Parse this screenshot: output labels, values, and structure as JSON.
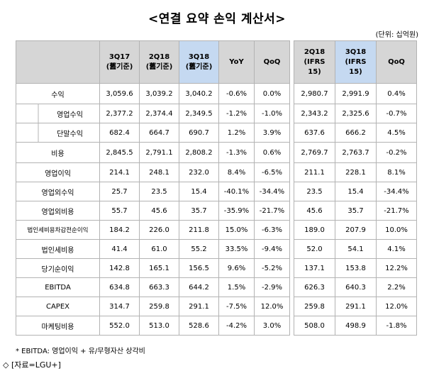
{
  "title": "<연결 요약 손익 계산서>",
  "unit": "(단위: 십억원)",
  "header": [
    "3Q17\n(舊기준)",
    "2Q18\n(舊기준)",
    "3Q18\n(舊기준)",
    "YoY",
    "QoQ",
    "2Q18\n(IFRS\n15)",
    "3Q18\n(IFRS\n15)",
    "QoQ"
  ],
  "rows": [
    {
      "label": "수익",
      "sub": false,
      "values": [
        "3,059.6",
        "3,039.2",
        "3,040.2",
        "-0.6%",
        "0.0%",
        "2,980.7",
        "2,991.9",
        "0.4%"
      ]
    },
    {
      "label": "영업수익",
      "sub": true,
      "values": [
        "2,377.2",
        "2,374.4",
        "2,349.5",
        "-1.2%",
        "-1.0%",
        "2,343.2",
        "2,325.6",
        "-0.7%"
      ]
    },
    {
      "label": "단말수익",
      "sub": true,
      "values": [
        "682.4",
        "664.7",
        "690.7",
        "1.2%",
        "3.9%",
        "637.6",
        "666.2",
        "4.5%"
      ]
    },
    {
      "label": "비용",
      "sub": false,
      "values": [
        "2,845.5",
        "2,791.1",
        "2,808.2",
        "-1.3%",
        "0.6%",
        "2,769.7",
        "2,763.7",
        "-0.2%"
      ]
    },
    {
      "label": "영업이익",
      "sub": false,
      "values": [
        "214.1",
        "248.1",
        "232.0",
        "8.4%",
        "-6.5%",
        "211.1",
        "228.1",
        "8.1%"
      ]
    },
    {
      "label": "영업외수익",
      "sub": false,
      "values": [
        "25.7",
        "23.5",
        "15.4",
        "-40.1%",
        "-34.4%",
        "23.5",
        "15.4",
        "-34.4%"
      ]
    },
    {
      "label": "영업외비용",
      "sub": false,
      "values": [
        "55.7",
        "45.6",
        "35.7",
        "-35.9%",
        "-21.7%",
        "45.6",
        "35.7",
        "-21.7%"
      ]
    },
    {
      "label": "법인세비용차감전순이익",
      "sub": false,
      "small": true,
      "values": [
        "184.2",
        "226.0",
        "211.8",
        "15.0%",
        "-6.3%",
        "189.0",
        "207.9",
        "10.0%"
      ]
    },
    {
      "label": "법인세비용",
      "sub": false,
      "values": [
        "41.4",
        "61.0",
        "55.2",
        "33.5%",
        "-9.4%",
        "52.0",
        "54.1",
        "4.1%"
      ]
    },
    {
      "label": "당기순이익",
      "sub": false,
      "values": [
        "142.8",
        "165.1",
        "156.5",
        "9.6%",
        "-5.2%",
        "137.1",
        "153.8",
        "12.2%"
      ]
    },
    {
      "label": "EBITDA",
      "sub": false,
      "values": [
        "634.8",
        "663.3",
        "644.2",
        "1.5%",
        "-2.9%",
        "626.3",
        "640.3",
        "2.2%"
      ]
    },
    {
      "label": "CAPEX",
      "sub": false,
      "values": [
        "314.7",
        "259.8",
        "291.1",
        "-7.5%",
        "12.0%",
        "259.8",
        "291.1",
        "12.0%"
      ]
    },
    {
      "label": "마케팅비용",
      "sub": false,
      "values": [
        "552.0",
        "513.0",
        "528.6",
        "-4.2%",
        "3.0%",
        "508.0",
        "498.9",
        "-1.8%"
      ]
    }
  ],
  "note": "* EBITDA: 영업이익 + 유/무형자산 상각비",
  "source": "◇ [자료=LGU+]",
  "colors": {
    "header_gray": "#d6d6d6",
    "header_highlight": "#c5d9f1",
    "border": "#b3b3b3"
  }
}
